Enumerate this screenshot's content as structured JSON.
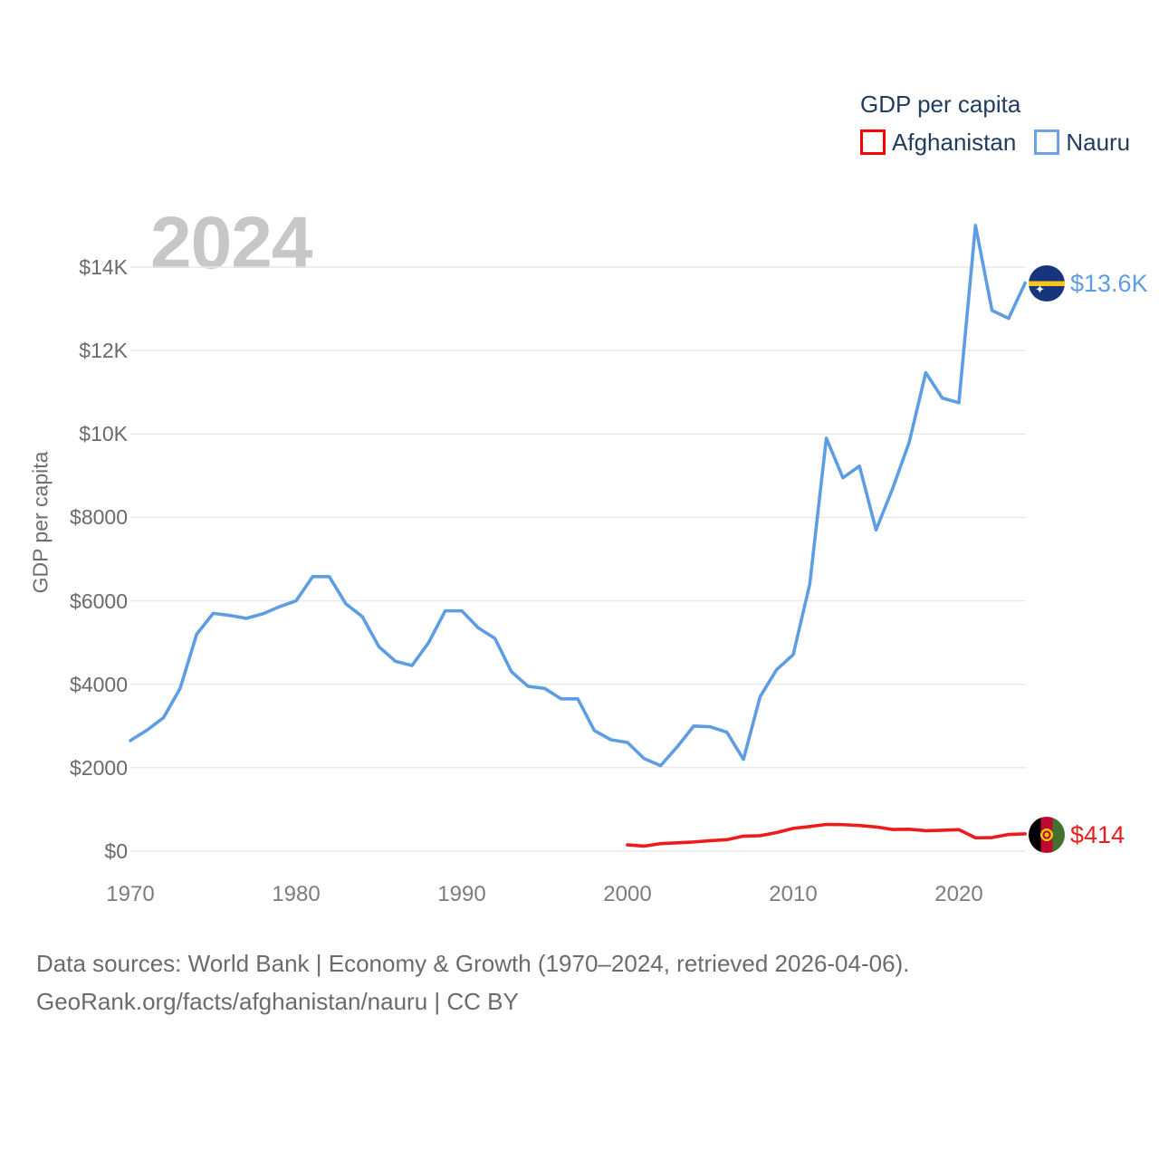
{
  "watermark": "2024",
  "legend": {
    "title": "GDP per capita",
    "items": [
      {
        "label": "Afghanistan",
        "color": "#fd0002"
      },
      {
        "label": "Nauru",
        "color": "#6ba3e6"
      }
    ]
  },
  "footer": {
    "line1": "Data sources: World Bank | Economy & Growth (1970–2024, retrieved 2026-04-06).",
    "line2": "GeoRank.org/facts/afghanistan/nauru | CC BY"
  },
  "chart_data": {
    "type": "line",
    "title": "GDP per capita",
    "xlabel": "",
    "ylabel": "GDP per capita",
    "xlim": [
      1968.5,
      2025.5
    ],
    "ylim": [
      0,
      15200
    ],
    "grid": "horizontal",
    "legend_position": "top-right",
    "x_ticks": [
      "1970",
      "1980",
      "1990",
      "2000",
      "2010",
      "2020"
    ],
    "y_ticks": [
      {
        "value": 0,
        "label": "$0"
      },
      {
        "value": 2000,
        "label": "$2000"
      },
      {
        "value": 4000,
        "label": "$4000"
      },
      {
        "value": 6000,
        "label": "$6000"
      },
      {
        "value": 8000,
        "label": "$8000"
      },
      {
        "value": 10000,
        "label": "$10K"
      },
      {
        "value": 12000,
        "label": "$12K"
      },
      {
        "value": 14000,
        "label": "$14K"
      }
    ],
    "series": [
      {
        "name": "Afghanistan",
        "color": "#ee1b1b",
        "end_label": "$414",
        "x": [
          2000,
          2001,
          2002,
          2003,
          2004,
          2005,
          2006,
          2007,
          2008,
          2009,
          2010,
          2011,
          2012,
          2013,
          2014,
          2015,
          2016,
          2017,
          2018,
          2019,
          2020,
          2021,
          2022,
          2023,
          2024
        ],
        "values": [
          150,
          120,
          180,
          200,
          220,
          250,
          275,
          360,
          370,
          445,
          545,
          590,
          640,
          635,
          615,
          580,
          520,
          525,
          490,
          500,
          515,
          320,
          325,
          400,
          414
        ]
      },
      {
        "name": "Nauru",
        "color": "#5d9de4",
        "end_label": "$13.6K",
        "x": [
          1970,
          1971,
          1972,
          1973,
          1974,
          1975,
          1976,
          1977,
          1978,
          1979,
          1980,
          1981,
          1982,
          1983,
          1984,
          1985,
          1986,
          1987,
          1988,
          1989,
          1990,
          1991,
          1992,
          1993,
          1994,
          1995,
          1996,
          1997,
          1998,
          1999,
          2000,
          2001,
          2002,
          2003,
          2004,
          2005,
          2006,
          2007,
          2008,
          2009,
          2010,
          2011,
          2012,
          2013,
          2014,
          2015,
          2016,
          2017,
          2018,
          2019,
          2020,
          2021,
          2022,
          2023,
          2024
        ],
        "values": [
          2650,
          2900,
          3200,
          3900,
          5200,
          5700,
          5650,
          5580,
          5690,
          5860,
          6000,
          6580,
          6580,
          5930,
          5620,
          4900,
          4550,
          4450,
          5000,
          5760,
          5760,
          5350,
          5100,
          4300,
          3950,
          3900,
          3650,
          3650,
          2890,
          2670,
          2605,
          2220,
          2050,
          2500,
          3000,
          2980,
          2850,
          2200,
          3700,
          4350,
          4710,
          6400,
          9900,
          8950,
          9230,
          7700,
          8690,
          9800,
          11470,
          10860,
          10750,
          15000,
          12960,
          12770,
          13620
        ]
      }
    ]
  }
}
